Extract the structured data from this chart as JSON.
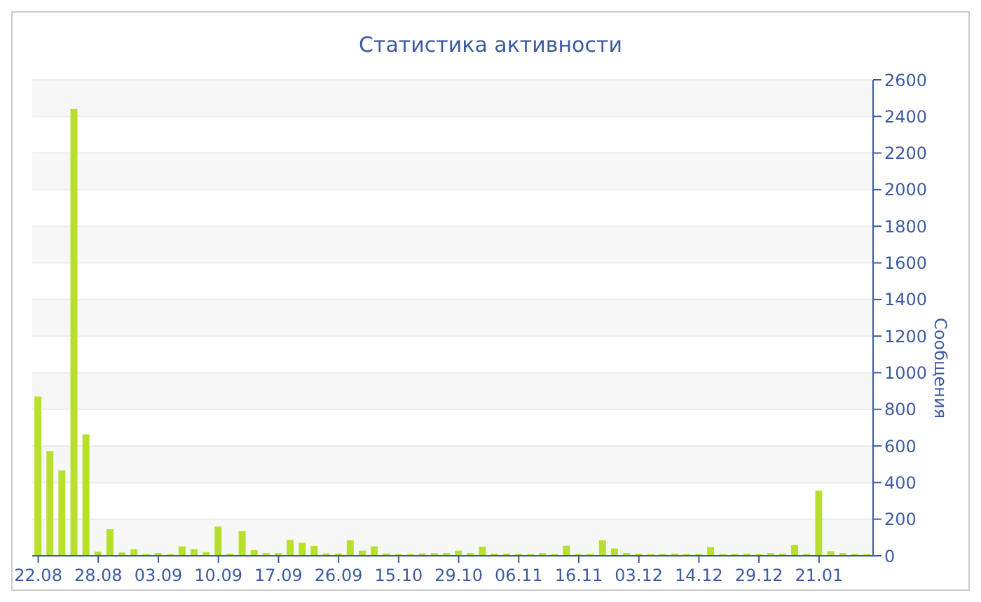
{
  "chart_data": {
    "type": "bar",
    "title": "Статистика активности",
    "ylabel": "Сообщения",
    "categories": [
      "22.08",
      null,
      null,
      null,
      null,
      "28.08",
      null,
      null,
      null,
      null,
      "03.09",
      null,
      null,
      null,
      null,
      "10.09",
      null,
      null,
      null,
      null,
      "17.09",
      null,
      null,
      null,
      null,
      "26.09",
      null,
      null,
      null,
      null,
      "15.10",
      null,
      null,
      null,
      null,
      "29.10",
      null,
      null,
      null,
      null,
      "06.11",
      null,
      null,
      null,
      null,
      "16.11",
      null,
      null,
      null,
      null,
      "03.12",
      null,
      null,
      null,
      null,
      "14.12",
      null,
      null,
      null,
      null,
      "29.12",
      null,
      null,
      null,
      null,
      "21.01",
      null,
      null,
      null,
      null
    ],
    "values": [
      870,
      573,
      466,
      2440,
      663,
      23,
      145,
      18,
      36,
      10,
      15,
      10,
      51,
      36,
      20,
      160,
      12,
      135,
      31,
      15,
      15,
      87,
      71,
      54,
      13,
      13,
      85,
      28,
      52,
      13,
      10,
      10,
      13,
      15,
      15,
      28,
      15,
      50,
      12,
      12,
      10,
      10,
      15,
      10,
      55,
      10,
      10,
      85,
      40,
      15,
      12,
      10,
      10,
      12,
      10,
      10,
      48,
      10,
      10,
      12,
      10,
      15,
      12,
      59,
      10,
      357,
      25,
      15,
      10,
      10
    ],
    "color": "#b8e02a",
    "ylim": [
      0,
      2600
    ],
    "yticks": [
      0,
      200,
      400,
      600,
      800,
      1000,
      1200,
      1400,
      1600,
      1800,
      2000,
      2200,
      2400,
      2600
    ],
    "grid": "y"
  }
}
